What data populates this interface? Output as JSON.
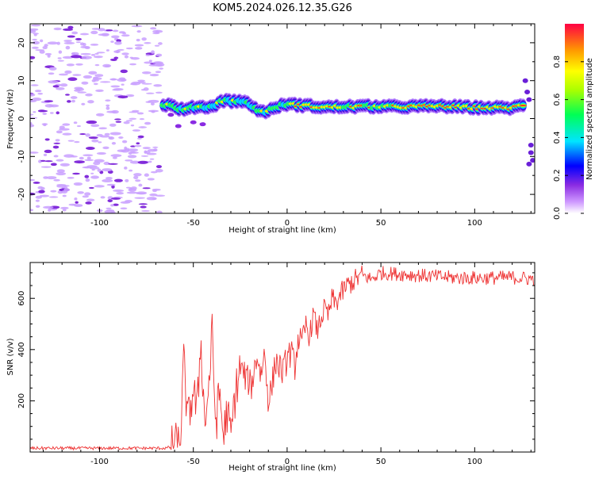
{
  "title": "KOM5.2024.026.12.35.G26",
  "chart_data": [
    {
      "type": "heatmap",
      "xlabel": "Height of straight line (km)",
      "ylabel": "Frequency (Hz)",
      "xlim": [
        -137,
        132
      ],
      "ylim": [
        -25,
        25
      ],
      "xticks": [
        -100,
        -50,
        0,
        50,
        100
      ],
      "yticks": [
        -20,
        -10,
        0,
        10,
        20
      ],
      "colorbar": {
        "label": "Normalized spectral amplitude",
        "range": [
          0,
          1
        ],
        "ticks": [
          0.0,
          0.2,
          0.4,
          0.6,
          0.8
        ]
      },
      "ridge": [
        {
          "x": -63,
          "f": 3.6
        },
        {
          "x": -55,
          "f": 2.2
        },
        {
          "x": -48,
          "f": 3.2
        },
        {
          "x": -40,
          "f": 3.0
        },
        {
          "x": -35,
          "f": 4.8
        },
        {
          "x": -30,
          "f": 4.6
        },
        {
          "x": -25,
          "f": 4.7
        },
        {
          "x": -20,
          "f": 3.8
        },
        {
          "x": -14,
          "f": 1.8
        },
        {
          "x": -10,
          "f": 2.0
        },
        {
          "x": -5,
          "f": 3.2
        },
        {
          "x": 0,
          "f": 3.8
        },
        {
          "x": 10,
          "f": 3.4
        },
        {
          "x": 20,
          "f": 3.0
        },
        {
          "x": 40,
          "f": 3.2
        },
        {
          "x": 60,
          "f": 3.1
        },
        {
          "x": 80,
          "f": 3.3
        },
        {
          "x": 100,
          "f": 2.9
        },
        {
          "x": 120,
          "f": 2.8
        },
        {
          "x": 125,
          "f": 3.4
        }
      ]
    },
    {
      "type": "line",
      "xlabel": "Height of straight line (km)",
      "ylabel": "SNR (v/v)",
      "xlim": [
        -137,
        132
      ],
      "ylim": [
        0,
        740
      ],
      "xticks": [
        -100,
        -50,
        0,
        50,
        100
      ],
      "yticks": [
        200,
        400,
        600
      ],
      "color": "#ee3333",
      "series": [
        {
          "x": [
            -137,
            -120,
            -100,
            -80,
            -65,
            -60,
            -57,
            -55,
            -53,
            -50,
            -48,
            -46,
            -44,
            -42,
            -40,
            -38,
            -36,
            -34,
            -32,
            -30,
            -28,
            -25,
            -22,
            -19,
            -16,
            -14,
            -12,
            -10,
            -8,
            -6,
            -4,
            -2,
            0,
            2,
            4,
            6,
            8,
            10,
            12,
            14,
            16,
            18,
            20,
            22,
            24,
            26,
            28,
            30,
            32,
            35,
            40,
            45,
            50,
            60,
            70,
            80,
            90,
            100,
            110,
            120,
            132
          ],
          "y": [
            15,
            15,
            15,
            15,
            15,
            22,
            50,
            360,
            110,
            250,
            150,
            450,
            110,
            230,
            460,
            100,
            240,
            60,
            160,
            55,
            210,
            330,
            290,
            260,
            380,
            300,
            390,
            200,
            260,
            360,
            330,
            310,
            370,
            390,
            330,
            450,
            410,
            500,
            450,
            540,
            470,
            520,
            560,
            530,
            600,
            580,
            610,
            630,
            650,
            665,
            690,
            675,
            700,
            695,
            690,
            685,
            680,
            680,
            680,
            682,
            675
          ]
        }
      ]
    }
  ]
}
